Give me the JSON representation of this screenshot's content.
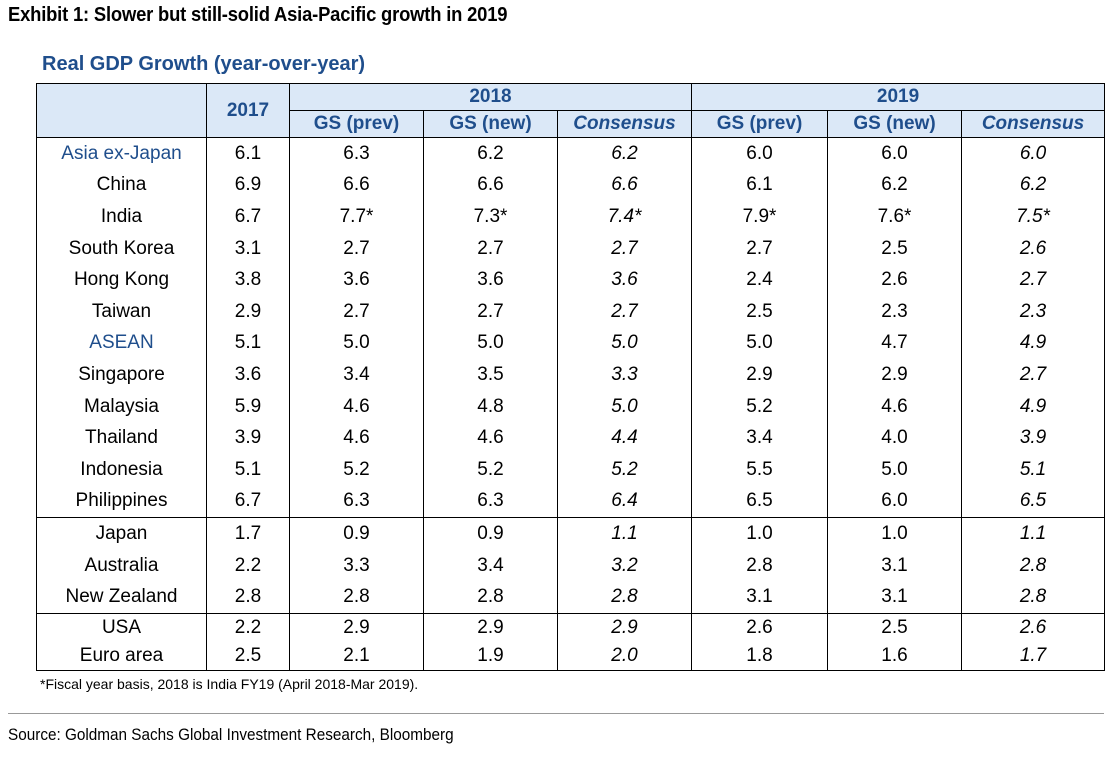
{
  "exhibit_title": "Exhibit 1: Slower but still-solid Asia-Pacific growth in 2019",
  "table_title": "Real GDP Growth (year-over-year)",
  "header": {
    "col_2017": "2017",
    "group_2018": "2018",
    "group_2019": "2019",
    "sub": [
      "GS (prev)",
      "GS (new)",
      "Consensus",
      "GS (prev)",
      "GS (new)",
      "Consensus"
    ]
  },
  "rows": [
    {
      "label": "Asia ex-Japan",
      "values": [
        "6.1",
        "6.3",
        "6.2",
        "6.2",
        "6.0",
        "6.0",
        "6.0"
      ]
    },
    {
      "label": "China",
      "values": [
        "6.9",
        "6.6",
        "6.6",
        "6.6",
        "6.1",
        "6.2",
        "6.2"
      ]
    },
    {
      "label": "India",
      "values": [
        "6.7",
        "7.7*",
        "7.3*",
        "7.4*",
        "7.9*",
        "7.6*",
        "7.5*"
      ]
    },
    {
      "label": "South Korea",
      "values": [
        "3.1",
        "2.7",
        "2.7",
        "2.7",
        "2.7",
        "2.5",
        "2.6"
      ]
    },
    {
      "label": "Hong Kong",
      "values": [
        "3.8",
        "3.6",
        "3.6",
        "3.6",
        "2.4",
        "2.6",
        "2.7"
      ]
    },
    {
      "label": "Taiwan",
      "values": [
        "2.9",
        "2.7",
        "2.7",
        "2.7",
        "2.5",
        "2.3",
        "2.3"
      ]
    },
    {
      "label": "ASEAN",
      "values": [
        "5.1",
        "5.0",
        "5.0",
        "5.0",
        "5.0",
        "4.7",
        "4.9"
      ]
    },
    {
      "label": "Singapore",
      "values": [
        "3.6",
        "3.4",
        "3.5",
        "3.3",
        "2.9",
        "2.9",
        "2.7"
      ]
    },
    {
      "label": "Malaysia",
      "values": [
        "5.9",
        "4.6",
        "4.8",
        "5.0",
        "5.2",
        "4.6",
        "4.9"
      ]
    },
    {
      "label": "Thailand",
      "values": [
        "3.9",
        "4.6",
        "4.6",
        "4.4",
        "3.4",
        "4.0",
        "3.9"
      ]
    },
    {
      "label": "Indonesia",
      "values": [
        "5.1",
        "5.2",
        "5.2",
        "5.2",
        "5.5",
        "5.0",
        "5.1"
      ]
    },
    {
      "label": "Philippines",
      "values": [
        "6.7",
        "6.3",
        "6.3",
        "6.4",
        "6.5",
        "6.0",
        "6.5"
      ]
    },
    {
      "label": "Japan",
      "values": [
        "1.7",
        "0.9",
        "0.9",
        "1.1",
        "1.0",
        "1.0",
        "1.1"
      ]
    },
    {
      "label": "Australia",
      "values": [
        "2.2",
        "3.3",
        "3.4",
        "3.2",
        "2.8",
        "3.1",
        "2.8"
      ]
    },
    {
      "label": "New Zealand",
      "values": [
        "2.8",
        "2.8",
        "2.8",
        "2.8",
        "3.1",
        "3.1",
        "2.8"
      ]
    },
    {
      "label": "USA",
      "values": [
        "2.2",
        "2.9",
        "2.9",
        "2.9",
        "2.6",
        "2.5",
        "2.6"
      ]
    },
    {
      "label": "Euro area",
      "values": [
        "2.5",
        "2.1",
        "1.9",
        "2.0",
        "1.8",
        "1.6",
        "1.7"
      ]
    }
  ],
  "footnote": "*Fiscal year basis, 2018 is India FY19 (April 2018-Mar 2019).",
  "source": "Source: Goldman Sachs Global Investment Research, Bloomberg",
  "colors": {
    "header_bg": "#dbe8f7",
    "accent_blue": "#1f4e8c"
  }
}
